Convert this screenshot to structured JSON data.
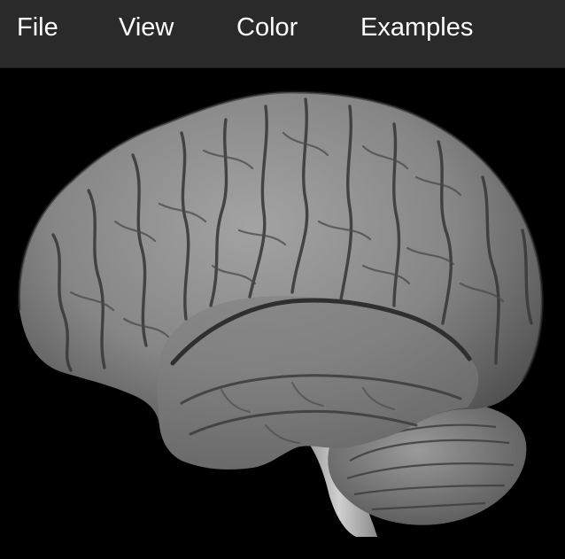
{
  "menubar": {
    "items": [
      {
        "label": "File"
      },
      {
        "label": "View"
      },
      {
        "label": "Color"
      },
      {
        "label": "Examples"
      }
    ]
  },
  "viewer": {
    "background": "#000000",
    "render": "brain-3d-surface-icon"
  },
  "colors": {
    "menubar_bg": "#2a2a2a",
    "menu_text": "#ffffff",
    "surface": "#8a8a8a"
  }
}
